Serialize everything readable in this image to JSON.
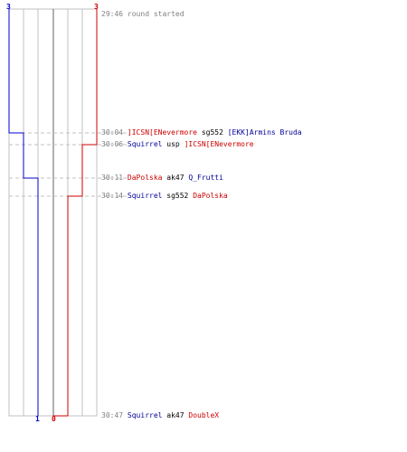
{
  "colors": {
    "blue_team": "#0000cc",
    "red_team": "#cc0000",
    "grid": "#c0c0c0",
    "dash": "#c0c0c0",
    "time": "#808080"
  },
  "top_scores": {
    "blue": "3",
    "red": "3"
  },
  "bottom_scores": {
    "blue": "1",
    "red": "0"
  },
  "events": [
    {
      "time": "29:46",
      "note": "round started"
    },
    {
      "time": "30:04",
      "killer": "]ICSN[EN",
      "killer_rest": "evermore",
      "killer_team": "red",
      "weapon": "sg552",
      "victim": "[EKK]Armins Bruda",
      "victim_team": "blue"
    },
    {
      "time": "30:06",
      "killer": "Squirrel",
      "killer_team": "blue",
      "weapon": "usp",
      "victim": "]ICSN[EN",
      "victim_rest": "evermore",
      "victim_team": "red"
    },
    {
      "time": "30:11",
      "killer": "DaPolska",
      "killer_team": "red",
      "weapon": "ak47",
      "victim": "Q_Frutti",
      "victim_team": "blue"
    },
    {
      "time": "30:14",
      "killer": "Squirrel",
      "killer_team": "blue",
      "weapon": "sg552",
      "victim": "DaPolska",
      "victim_team": "red"
    },
    {
      "time": "30:47",
      "killer": "Squirrel",
      "killer_team": "blue",
      "weapon": "ak47",
      "victim": "DoubleX",
      "victim_team": "red"
    }
  ]
}
